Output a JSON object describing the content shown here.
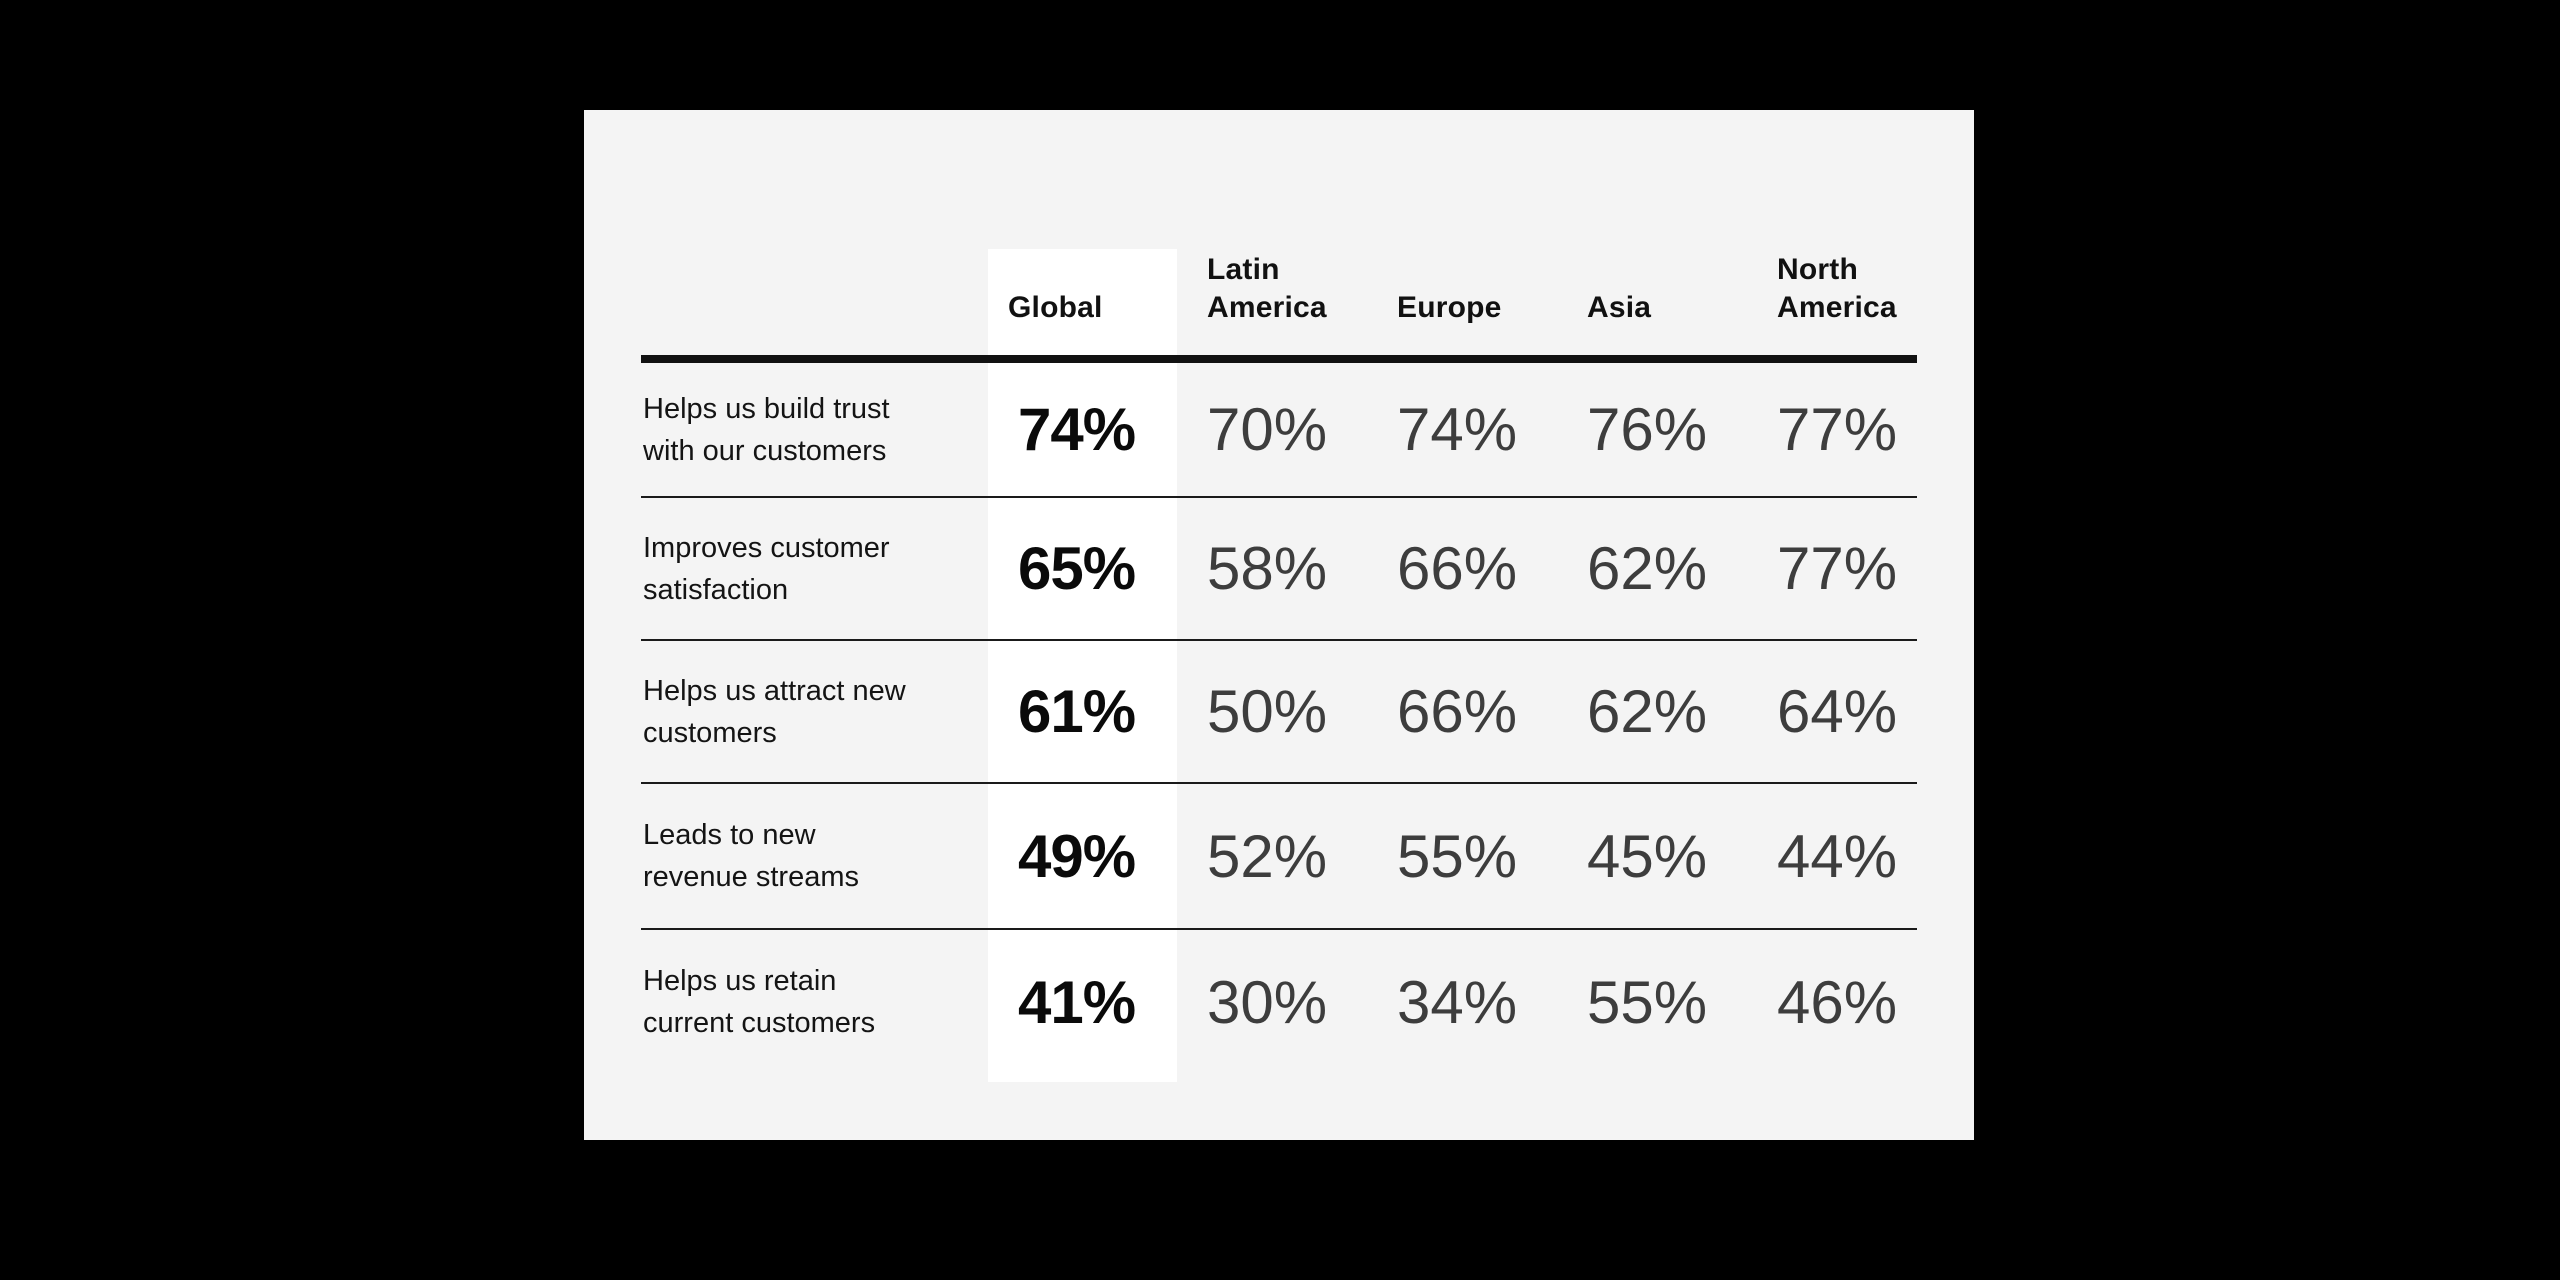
{
  "colors": {
    "background": "#000000",
    "card_background": "#f4f4f4",
    "global_column_highlight": "#ffffff",
    "text_ink": "#111111",
    "regional_value_color": "#3d3d3d"
  },
  "table": {
    "headers": [
      {
        "id": "global",
        "label": "Global",
        "line1": "",
        "line2": "Global",
        "highlighted": true
      },
      {
        "id": "latin-america",
        "label": "Latin America",
        "line1": "Latin",
        "line2": "America",
        "highlighted": false
      },
      {
        "id": "europe",
        "label": "Europe",
        "line1": "",
        "line2": "Europe",
        "highlighted": false
      },
      {
        "id": "asia",
        "label": "Asia",
        "line1": "",
        "line2": "Asia",
        "highlighted": false
      },
      {
        "id": "north-america",
        "label": "North America",
        "line1": "North",
        "line2": "America",
        "highlighted": false
      }
    ],
    "rows": [
      {
        "label": "Helps us build trust with our customers",
        "line1": "Helps us build trust",
        "line2": "with our customers",
        "global": "74%",
        "values": [
          "70%",
          "74%",
          "76%",
          "77%"
        ]
      },
      {
        "label": "Improves customer satisfaction",
        "line1": "Improves customer",
        "line2": "satisfaction",
        "global": "65%",
        "values": [
          "58%",
          "66%",
          "62%",
          "77%"
        ]
      },
      {
        "label": "Helps us attract new customers",
        "line1": "Helps us attract new",
        "line2": "customers",
        "global": "61%",
        "values": [
          "50%",
          "66%",
          "62%",
          "64%"
        ]
      },
      {
        "label": "Leads to new revenue streams",
        "line1": "Leads to new",
        "line2": "revenue streams",
        "global": "49%",
        "values": [
          "52%",
          "55%",
          "45%",
          "44%"
        ]
      },
      {
        "label": "Helps us retain current customers",
        "line1": "Helps us retain",
        "line2": "current customers",
        "global": "41%",
        "values": [
          "30%",
          "34%",
          "55%",
          "46%"
        ]
      }
    ]
  },
  "chart_data": {
    "type": "table",
    "title": "",
    "categories": [
      "Global",
      "Latin America",
      "Europe",
      "Asia",
      "North America"
    ],
    "series": [
      {
        "name": "Helps us build trust with our customers",
        "values": [
          74,
          70,
          74,
          76,
          77
        ]
      },
      {
        "name": "Improves customer satisfaction",
        "values": [
          65,
          58,
          66,
          62,
          77
        ]
      },
      {
        "name": "Helps us attract new customers",
        "values": [
          61,
          50,
          66,
          62,
          64
        ]
      },
      {
        "name": "Leads to new revenue streams",
        "values": [
          49,
          52,
          55,
          45,
          44
        ]
      },
      {
        "name": "Helps us retain current customers",
        "values": [
          41,
          30,
          34,
          55,
          46
        ]
      }
    ],
    "unit": "%",
    "highlighted_column": "Global",
    "layout": {
      "grid": "horizontal-rules",
      "header_rule": "thick",
      "legend_position": "none"
    }
  }
}
